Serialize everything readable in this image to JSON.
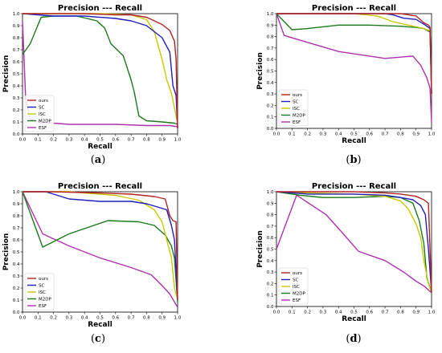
{
  "chart_data": [
    {
      "type": "line",
      "panel": "a",
      "caption": "(a)",
      "title": "Precision --- Recall",
      "xlabel": "Recall",
      "ylabel": "Precision",
      "xlim": [
        0,
        1.0
      ],
      "ylim": [
        0,
        1.0
      ],
      "x_ticks": [
        "0.0",
        "0.1",
        "0.2",
        "0.3",
        "0.4",
        "0.5",
        "0.6",
        "0.7",
        "0.8",
        "0.9",
        "1.0"
      ],
      "y_ticks": [
        "0.0",
        "0.1",
        "0.2",
        "0.3",
        "0.4",
        "0.5",
        "0.6",
        "0.7",
        "0.8",
        "0.9",
        "1.0"
      ],
      "grid": false,
      "legend_position": "lower-left",
      "series": [
        {
          "name": "ours",
          "color": "#b22222",
          "points": [
            [
              0.0,
              1.0
            ],
            [
              0.2,
              1.0
            ],
            [
              0.4,
              1.0
            ],
            [
              0.6,
              0.99
            ],
            [
              0.7,
              0.99
            ],
            [
              0.8,
              0.97
            ],
            [
              0.9,
              0.91
            ],
            [
              0.95,
              0.86
            ],
            [
              0.98,
              0.77
            ],
            [
              0.99,
              0.62
            ],
            [
              1.0,
              0.05
            ]
          ]
        },
        {
          "name": "SC",
          "color": "#1f1fbf",
          "points": [
            [
              0.0,
              1.0
            ],
            [
              0.2,
              0.98
            ],
            [
              0.4,
              0.98
            ],
            [
              0.6,
              0.96
            ],
            [
              0.7,
              0.94
            ],
            [
              0.8,
              0.9
            ],
            [
              0.86,
              0.84
            ],
            [
              0.9,
              0.8
            ],
            [
              0.95,
              0.68
            ],
            [
              0.97,
              0.4
            ],
            [
              0.99,
              0.32
            ],
            [
              1.0,
              0.05
            ]
          ]
        },
        {
          "name": "ISC",
          "color": "#c8c800",
          "points": [
            [
              0.0,
              1.0
            ],
            [
              0.2,
              1.0
            ],
            [
              0.5,
              1.0
            ],
            [
              0.7,
              0.99
            ],
            [
              0.8,
              0.95
            ],
            [
              0.85,
              0.85
            ],
            [
              0.9,
              0.62
            ],
            [
              0.93,
              0.45
            ],
            [
              0.96,
              0.34
            ],
            [
              0.99,
              0.15
            ],
            [
              1.0,
              0.08
            ]
          ]
        },
        {
          "name": "M2DP",
          "color": "#1a7a1a",
          "points": [
            [
              0.0,
              0.66
            ],
            [
              0.05,
              0.75
            ],
            [
              0.12,
              0.97
            ],
            [
              0.2,
              0.98
            ],
            [
              0.35,
              0.98
            ],
            [
              0.48,
              0.94
            ],
            [
              0.53,
              0.88
            ],
            [
              0.57,
              0.75
            ],
            [
              0.65,
              0.65
            ],
            [
              0.7,
              0.45
            ],
            [
              0.72,
              0.35
            ],
            [
              0.75,
              0.15
            ],
            [
              0.8,
              0.11
            ],
            [
              0.9,
              0.1
            ],
            [
              0.98,
              0.09
            ],
            [
              1.0,
              0.08
            ]
          ]
        },
        {
          "name": "ESF",
          "color": "#b030b0",
          "points": [
            [
              0.0,
              0.94
            ],
            [
              0.02,
              0.3
            ],
            [
              0.05,
              0.12
            ],
            [
              0.1,
              0.1
            ],
            [
              0.3,
              0.08
            ],
            [
              0.6,
              0.08
            ],
            [
              0.8,
              0.07
            ],
            [
              0.95,
              0.07
            ],
            [
              1.0,
              0.06
            ]
          ]
        }
      ]
    },
    {
      "type": "line",
      "panel": "b",
      "caption": "(b)",
      "title": "Precision --- Recall",
      "xlabel": "Recall",
      "ylabel": "Precision",
      "xlim": [
        0,
        1.0
      ],
      "ylim": [
        0,
        1.0
      ],
      "x_ticks": [
        "0.0",
        "0.1",
        "0.2",
        "0.3",
        "0.4",
        "0.5",
        "0.6",
        "0.7",
        "0.8",
        "0.9",
        "1.0"
      ],
      "y_ticks": [
        "0.0",
        "0.1",
        "0.2",
        "0.3",
        "0.4",
        "0.5",
        "0.6",
        "0.7",
        "0.8",
        "0.9",
        "1.0"
      ],
      "grid": false,
      "legend_position": "lower-left",
      "series": [
        {
          "name": "ours",
          "color": "#b22222",
          "points": [
            [
              0.0,
              1.0
            ],
            [
              0.3,
              1.0
            ],
            [
              0.6,
              1.0
            ],
            [
              0.8,
              1.0
            ],
            [
              0.9,
              0.98
            ],
            [
              0.95,
              0.92
            ],
            [
              0.98,
              0.9
            ],
            [
              0.99,
              0.88
            ],
            [
              1.0,
              0.3
            ]
          ]
        },
        {
          "name": "SC",
          "color": "#1f1fbf",
          "points": [
            [
              0.0,
              1.0
            ],
            [
              0.3,
              1.0
            ],
            [
              0.7,
              1.0
            ],
            [
              0.75,
              0.99
            ],
            [
              0.82,
              0.96
            ],
            [
              0.9,
              0.95
            ],
            [
              0.96,
              0.9
            ],
            [
              0.99,
              0.87
            ],
            [
              1.0,
              0.3
            ]
          ]
        },
        {
          "name": "ISC",
          "color": "#c8c800",
          "points": [
            [
              0.0,
              1.0
            ],
            [
              0.3,
              1.0
            ],
            [
              0.5,
              1.0
            ],
            [
              0.65,
              0.98
            ],
            [
              0.75,
              0.93
            ],
            [
              0.85,
              0.9
            ],
            [
              0.95,
              0.87
            ],
            [
              0.99,
              0.85
            ],
            [
              1.0,
              0.3
            ]
          ]
        },
        {
          "name": "M2DP",
          "color": "#1a7a1a",
          "points": [
            [
              0.0,
              1.0
            ],
            [
              0.1,
              0.86
            ],
            [
              0.2,
              0.87
            ],
            [
              0.4,
              0.9
            ],
            [
              0.6,
              0.9
            ],
            [
              0.8,
              0.89
            ],
            [
              0.9,
              0.88
            ],
            [
              0.95,
              0.87
            ],
            [
              0.99,
              0.84
            ],
            [
              1.0,
              0.3
            ]
          ]
        },
        {
          "name": "ESF",
          "color": "#b030b0",
          "points": [
            [
              0.0,
              1.0
            ],
            [
              0.05,
              0.81
            ],
            [
              0.2,
              0.75
            ],
            [
              0.4,
              0.67
            ],
            [
              0.7,
              0.61
            ],
            [
              0.88,
              0.63
            ],
            [
              0.93,
              0.55
            ],
            [
              0.97,
              0.44
            ],
            [
              0.99,
              0.35
            ],
            [
              1.0,
              0.05
            ]
          ]
        }
      ]
    },
    {
      "type": "line",
      "panel": "c",
      "caption": "(c)",
      "title": "Precision --- Recall",
      "xlabel": "Recall",
      "ylabel": "Precision",
      "xlim": [
        0,
        1.0
      ],
      "ylim": [
        0,
        1.0
      ],
      "x_ticks": [
        "0.0",
        "0.1",
        "0.2",
        "0.3",
        "0.4",
        "0.5",
        "0.6",
        "0.7",
        "0.8",
        "0.9",
        "1.0"
      ],
      "y_ticks": [
        "0.0",
        "0.1",
        "0.2",
        "0.3",
        "0.4",
        "0.5",
        "0.6",
        "0.7",
        "0.8",
        "0.9",
        "1.0"
      ],
      "grid": false,
      "legend_position": "lower-left",
      "series": [
        {
          "name": "ours",
          "color": "#b22222",
          "points": [
            [
              0.0,
              1.0
            ],
            [
              0.2,
              1.0
            ],
            [
              0.5,
              0.99
            ],
            [
              0.7,
              0.98
            ],
            [
              0.85,
              0.96
            ],
            [
              0.92,
              0.94
            ],
            [
              0.95,
              0.8
            ],
            [
              0.97,
              0.76
            ],
            [
              0.99,
              0.75
            ],
            [
              1.0,
              0.1
            ]
          ]
        },
        {
          "name": "SC",
          "color": "#1f1fbf",
          "points": [
            [
              0.0,
              1.0
            ],
            [
              0.15,
              1.0
            ],
            [
              0.3,
              0.94
            ],
            [
              0.5,
              0.92
            ],
            [
              0.7,
              0.92
            ],
            [
              0.8,
              0.9
            ],
            [
              0.88,
              0.87
            ],
            [
              0.93,
              0.85
            ],
            [
              0.96,
              0.72
            ],
            [
              0.98,
              0.6
            ],
            [
              1.0,
              0.1
            ]
          ]
        },
        {
          "name": "ISC",
          "color": "#c8c800",
          "points": [
            [
              0.0,
              1.0
            ],
            [
              0.3,
              1.0
            ],
            [
              0.6,
              0.97
            ],
            [
              0.75,
              0.93
            ],
            [
              0.85,
              0.85
            ],
            [
              0.9,
              0.75
            ],
            [
              0.94,
              0.55
            ],
            [
              0.96,
              0.45
            ],
            [
              0.98,
              0.2
            ],
            [
              1.0,
              0.1
            ]
          ]
        },
        {
          "name": "M2DP",
          "color": "#1a7a1a",
          "points": [
            [
              0.0,
              1.0
            ],
            [
              0.13,
              0.54
            ],
            [
              0.3,
              0.65
            ],
            [
              0.55,
              0.76
            ],
            [
              0.75,
              0.75
            ],
            [
              0.85,
              0.72
            ],
            [
              0.92,
              0.64
            ],
            [
              0.96,
              0.55
            ],
            [
              0.98,
              0.45
            ],
            [
              1.0,
              0.08
            ]
          ]
        },
        {
          "name": "ESF",
          "color": "#b030b0",
          "points": [
            [
              0.0,
              1.0
            ],
            [
              0.13,
              0.65
            ],
            [
              0.3,
              0.55
            ],
            [
              0.5,
              0.45
            ],
            [
              0.7,
              0.37
            ],
            [
              0.83,
              0.31
            ],
            [
              0.9,
              0.22
            ],
            [
              0.95,
              0.15
            ],
            [
              1.0,
              0.04
            ]
          ]
        }
      ]
    },
    {
      "type": "line",
      "panel": "d",
      "caption": "(d)",
      "title": "Precision --- Recall",
      "xlabel": "Recall",
      "ylabel": "Precision",
      "xlim": [
        0,
        1.0
      ],
      "ylim": [
        0,
        1.0
      ],
      "x_ticks": [
        "0.0",
        "0.1",
        "0.2",
        "0.3",
        "0.4",
        "0.5",
        "0.6",
        "0.7",
        "0.8",
        "0.9",
        "1.0"
      ],
      "y_ticks": [
        "0.0",
        "0.1",
        "0.2",
        "0.3",
        "0.4",
        "0.5",
        "0.6",
        "0.7",
        "0.8",
        "0.9",
        "1.0"
      ],
      "grid": false,
      "legend_position": "lower-left",
      "series": [
        {
          "name": "ours",
          "color": "#b22222",
          "points": [
            [
              0.0,
              1.0
            ],
            [
              0.2,
              1.0
            ],
            [
              0.5,
              1.0
            ],
            [
              0.7,
              0.99
            ],
            [
              0.8,
              0.98
            ],
            [
              0.9,
              0.96
            ],
            [
              0.95,
              0.93
            ],
            [
              0.98,
              0.9
            ],
            [
              1.0,
              0.12
            ]
          ]
        },
        {
          "name": "SC",
          "color": "#1f1fbf",
          "points": [
            [
              0.0,
              1.0
            ],
            [
              0.2,
              0.98
            ],
            [
              0.5,
              0.98
            ],
            [
              0.7,
              0.97
            ],
            [
              0.8,
              0.95
            ],
            [
              0.88,
              0.93
            ],
            [
              0.93,
              0.88
            ],
            [
              0.96,
              0.8
            ],
            [
              0.98,
              0.5
            ],
            [
              1.0,
              0.12
            ]
          ]
        },
        {
          "name": "ISC",
          "color": "#c8c800",
          "points": [
            [
              0.0,
              1.0
            ],
            [
              0.2,
              0.99
            ],
            [
              0.5,
              0.98
            ],
            [
              0.7,
              0.96
            ],
            [
              0.8,
              0.92
            ],
            [
              0.85,
              0.85
            ],
            [
              0.9,
              0.72
            ],
            [
              0.93,
              0.6
            ],
            [
              0.95,
              0.4
            ],
            [
              0.98,
              0.2
            ],
            [
              1.0,
              0.12
            ]
          ]
        },
        {
          "name": "M2DP",
          "color": "#1a7a1a",
          "points": [
            [
              0.0,
              1.0
            ],
            [
              0.15,
              0.97
            ],
            [
              0.3,
              0.95
            ],
            [
              0.5,
              0.95
            ],
            [
              0.7,
              0.96
            ],
            [
              0.8,
              0.95
            ],
            [
              0.88,
              0.9
            ],
            [
              0.92,
              0.75
            ],
            [
              0.95,
              0.55
            ],
            [
              0.97,
              0.25
            ],
            [
              1.0,
              0.12
            ]
          ]
        },
        {
          "name": "ESF",
          "color": "#b030b0",
          "points": [
            [
              0.0,
              0.5
            ],
            [
              0.13,
              0.97
            ],
            [
              0.32,
              0.8
            ],
            [
              0.42,
              0.65
            ],
            [
              0.53,
              0.48
            ],
            [
              0.7,
              0.4
            ],
            [
              0.82,
              0.3
            ],
            [
              0.9,
              0.22
            ],
            [
              0.95,
              0.18
            ],
            [
              1.0,
              0.12
            ]
          ]
        }
      ]
    }
  ]
}
